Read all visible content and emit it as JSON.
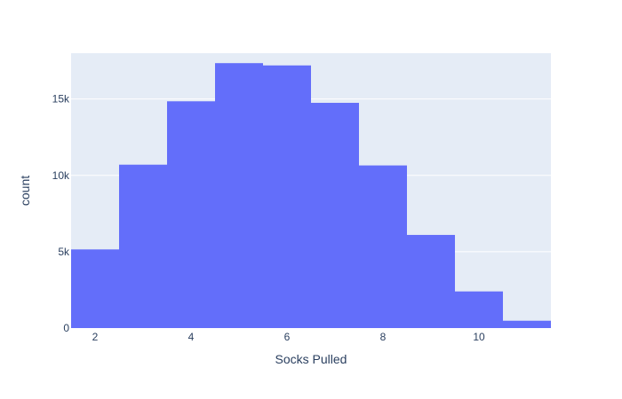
{
  "chart_data": {
    "type": "bar",
    "subtype": "histogram",
    "xlabel": "Socks Pulled",
    "ylabel": "count",
    "bins": [
      {
        "x": 2,
        "count": 5150
      },
      {
        "x": 3,
        "count": 10700
      },
      {
        "x": 4,
        "count": 14850
      },
      {
        "x": 5,
        "count": 17350
      },
      {
        "x": 6,
        "count": 17200
      },
      {
        "x": 7,
        "count": 14750
      },
      {
        "x": 8,
        "count": 10650
      },
      {
        "x": 9,
        "count": 6100
      },
      {
        "x": 10,
        "count": 2400
      },
      {
        "x": 11,
        "count": 480
      }
    ],
    "bin_width": 1,
    "xlim": [
      1.5,
      11.5
    ],
    "ylim": [
      0,
      18000
    ],
    "x_ticks": [
      2,
      4,
      6,
      8,
      10
    ],
    "x_tick_labels": [
      "2",
      "4",
      "6",
      "8",
      "10"
    ],
    "y_ticks": [
      0,
      5000,
      10000,
      15000
    ],
    "y_tick_labels": [
      "0",
      "5k",
      "10k",
      "15k"
    ],
    "grid": true,
    "colors": {
      "bar": "#636efa",
      "plot_background": "#e5ecf6",
      "gridline": "#ffffff",
      "text": "#2a3f5f"
    }
  }
}
